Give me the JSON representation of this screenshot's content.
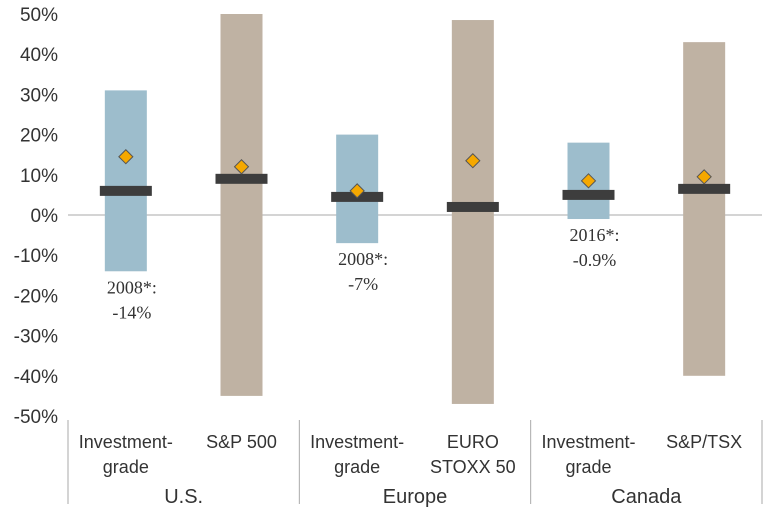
{
  "chart_data": {
    "type": "bar",
    "ylim": [
      -50,
      50
    ],
    "yticks": [
      -50,
      -40,
      -30,
      -20,
      -10,
      0,
      10,
      20,
      30,
      40,
      50
    ],
    "ytick_labels": [
      "-50%",
      "-40%",
      "-30%",
      "-20%",
      "-10%",
      "0%",
      "10%",
      "20%",
      "30%",
      "40%",
      "50%"
    ],
    "groups": [
      {
        "name": "U.S.",
        "items": [
          {
            "label_lines": [
              "Investment-",
              "grade"
            ],
            "kind": "bond",
            "min": -14,
            "max": 31,
            "median": 6,
            "mean": 14.5,
            "annotation_lines": [
              "2008*:",
              "-14%"
            ]
          },
          {
            "label_lines": [
              "S&P 500"
            ],
            "kind": "equity",
            "min": -45,
            "max": 50,
            "median": 9,
            "mean": 12
          }
        ]
      },
      {
        "name": "Europe",
        "items": [
          {
            "label_lines": [
              "Investment-",
              "grade"
            ],
            "kind": "bond",
            "min": -7,
            "max": 20,
            "median": 4.5,
            "mean": 6,
            "annotation_lines": [
              "2008*:",
              "-7%"
            ]
          },
          {
            "label_lines": [
              "EURO",
              "STOXX 50"
            ],
            "kind": "equity",
            "min": -47,
            "max": 48.5,
            "median": 2,
            "mean": 13.5
          }
        ]
      },
      {
        "name": "Canada",
        "items": [
          {
            "label_lines": [
              "Investment-",
              "grade"
            ],
            "kind": "bond",
            "min": -1,
            "max": 18,
            "median": 5,
            "mean": 8.5,
            "annotation_lines": [
              "2016*:",
              "-0.9%"
            ]
          },
          {
            "label_lines": [
              "S&P/TSX"
            ],
            "kind": "equity",
            "min": -40,
            "max": 43,
            "median": 6.5,
            "mean": 9.5
          }
        ]
      }
    ],
    "colors": {
      "bond": "#9dbdcc",
      "equity": "#bfb2a3",
      "median": "#3d3d3d",
      "mean": "#f5a800",
      "mean_edge": "#555555",
      "axis": "#aaaaaa"
    }
  }
}
